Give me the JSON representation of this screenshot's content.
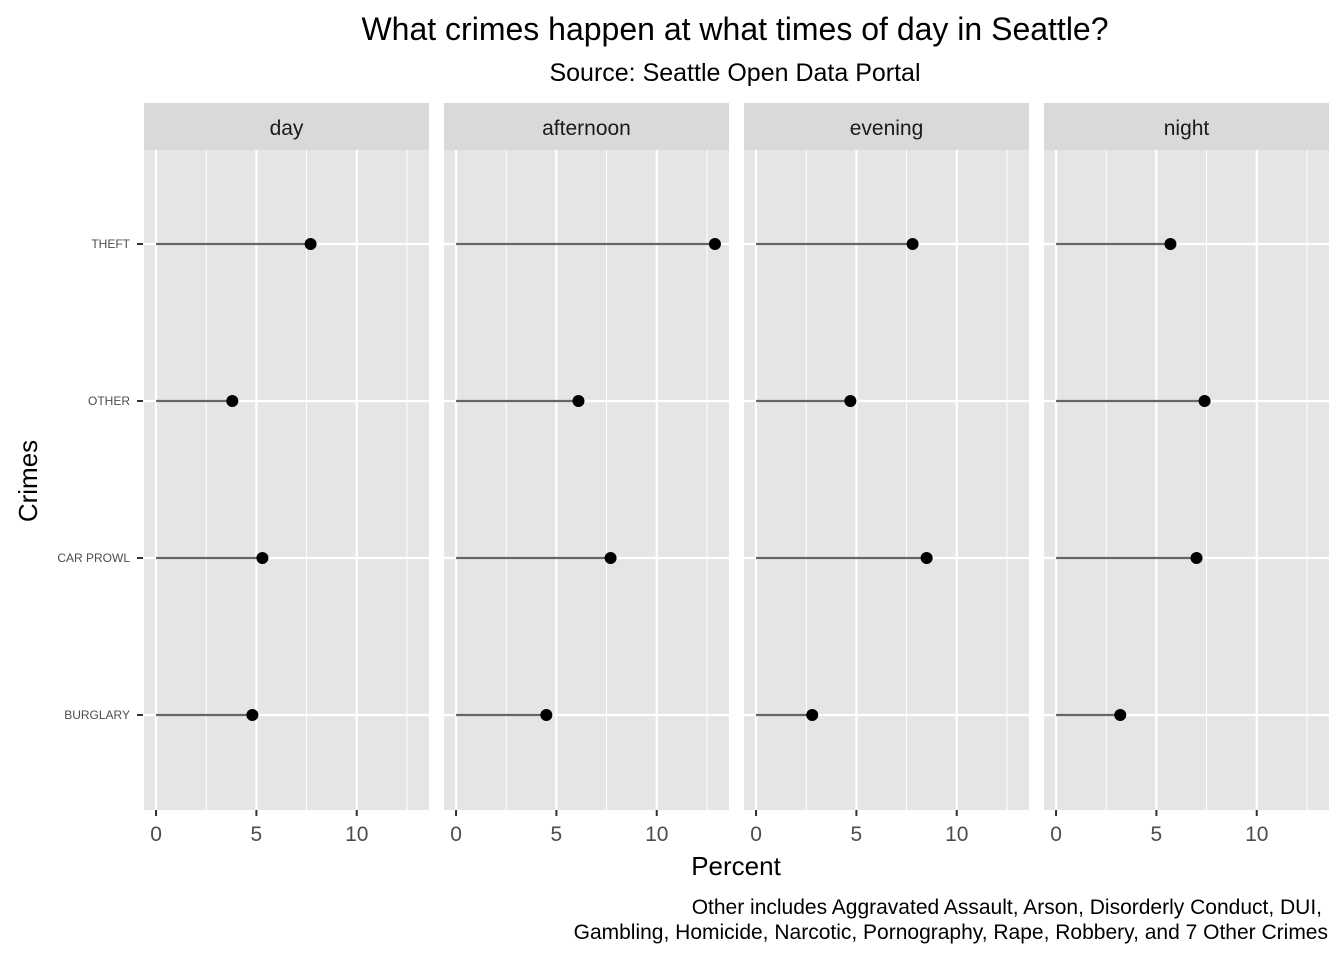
{
  "chart_data": {
    "type": "lollipop",
    "title": "What crimes happen at what times of day in Seattle?",
    "subtitle": "Source: Seattle Open Data Portal",
    "xlabel": "Percent",
    "ylabel": "Crimes",
    "caption": [
      "Other includes Aggravated Assault, Arson, Disorderly Conduct, DUI,",
      "Gambling, Homicide, Narcotic, Pornography, Rape, Robbery, and 7 Other Crimes"
    ],
    "categories": [
      "THEFT",
      "OTHER",
      "CAR PROWL",
      "BURGLARY"
    ],
    "xlim": [
      -0.6,
      13.6
    ],
    "xticks": [
      0,
      5,
      10
    ],
    "grid": true,
    "facets": [
      {
        "name": "day",
        "values": [
          7.7,
          3.8,
          5.3,
          4.8
        ]
      },
      {
        "name": "afternoon",
        "values": [
          12.9,
          6.1,
          7.7,
          4.5
        ]
      },
      {
        "name": "evening",
        "values": [
          7.8,
          4.7,
          8.5,
          2.8
        ]
      },
      {
        "name": "night",
        "values": [
          5.7,
          7.4,
          7.0,
          3.2
        ]
      }
    ],
    "colors": {
      "panel_bg": "#e5e5e5",
      "strip_bg": "#d9d9d9",
      "grid": "#ffffff",
      "segment": "#666666",
      "point": "#000000"
    }
  }
}
